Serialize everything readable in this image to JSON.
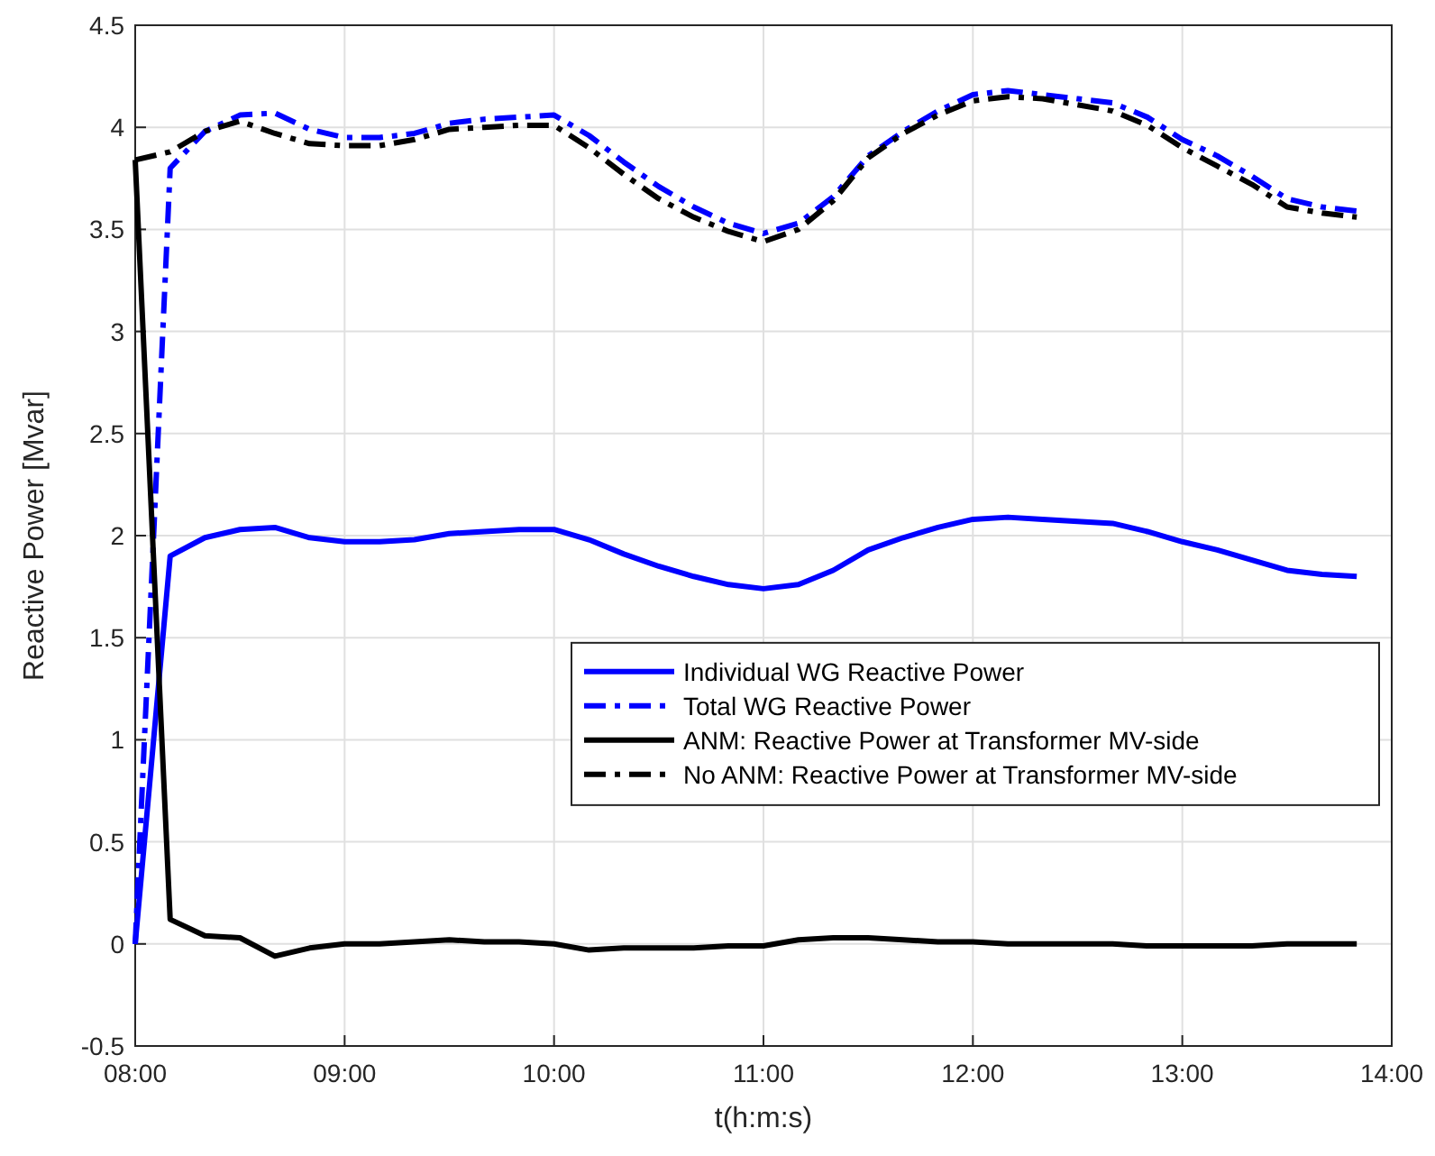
{
  "chart_data": {
    "type": "line",
    "xlabel": "t(h:m:s)",
    "ylabel": "Reactive Power [Mvar]",
    "x": [
      8,
      8.167,
      8.333,
      8.5,
      8.667,
      8.833,
      9,
      9.167,
      9.333,
      9.5,
      9.667,
      9.833,
      10,
      10.167,
      10.333,
      10.5,
      10.667,
      10.833,
      11,
      11.167,
      11.333,
      11.5,
      11.667,
      11.833,
      12,
      12.167,
      12.333,
      12.5,
      12.667,
      12.833,
      13,
      13.167,
      13.333,
      13.5,
      13.667,
      13.833
    ],
    "xlim": [
      8,
      14
    ],
    "xticks": [
      {
        "value": 8,
        "label": "08:00"
      },
      {
        "value": 9,
        "label": "09:00"
      },
      {
        "value": 10,
        "label": "10:00"
      },
      {
        "value": 11,
        "label": "11:00"
      },
      {
        "value": 12,
        "label": "12:00"
      },
      {
        "value": 13,
        "label": "13:00"
      },
      {
        "value": 14,
        "label": "14:00"
      }
    ],
    "ylim": [
      -0.5,
      4.5
    ],
    "yticks": [
      -0.5,
      0,
      0.5,
      1,
      1.5,
      2,
      2.5,
      3,
      3.5,
      4,
      4.5
    ],
    "grid": true,
    "legend": "right",
    "marker": "none",
    "series": [
      {
        "name": "Individual WG Reactive Power",
        "color": "#0000ff",
        "line_style": "solid",
        "values": [
          0,
          1.9,
          1.99,
          2.03,
          2.04,
          1.99,
          1.97,
          1.97,
          1.98,
          2.01,
          2.02,
          2.03,
          2.03,
          1.98,
          1.91,
          1.85,
          1.8,
          1.76,
          1.74,
          1.76,
          1.83,
          1.93,
          1.99,
          2.04,
          2.08,
          2.09,
          2.08,
          2.07,
          2.06,
          2.02,
          1.97,
          1.93,
          1.88,
          1.83,
          1.81,
          1.8
        ]
      },
      {
        "name": "Total WG Reactive Power",
        "color": "#0000ff",
        "line_style": "dashed",
        "values": [
          0,
          3.8,
          3.98,
          4.06,
          4.07,
          3.99,
          3.95,
          3.95,
          3.97,
          4.02,
          4.04,
          4.05,
          4.06,
          3.96,
          3.83,
          3.71,
          3.61,
          3.53,
          3.48,
          3.53,
          3.66,
          3.86,
          3.98,
          4.08,
          4.16,
          4.18,
          4.16,
          4.14,
          4.12,
          4.05,
          3.94,
          3.86,
          3.76,
          3.65,
          3.61,
          3.59
        ]
      },
      {
        "name": "ANM: Reactive Power at Transformer MV-side",
        "color": "#000000",
        "line_style": "solid",
        "values": [
          3.84,
          0.12,
          0.04,
          0.03,
          -0.06,
          -0.02,
          0,
          0,
          0.01,
          0.02,
          0.01,
          0.01,
          0,
          -0.03,
          -0.02,
          -0.02,
          -0.02,
          -0.01,
          -0.01,
          0.02,
          0.03,
          0.03,
          0.02,
          0.01,
          0.01,
          0,
          0,
          0,
          0,
          -0.01,
          -0.01,
          -0.01,
          -0.01,
          0,
          0,
          0
        ]
      },
      {
        "name": "No ANM: Reactive Power at Transformer MV-side",
        "color": "#000000",
        "line_style": "dashed",
        "values": [
          3.84,
          3.88,
          3.98,
          4.03,
          3.97,
          3.92,
          3.91,
          3.91,
          3.94,
          3.99,
          4,
          4.01,
          4.01,
          3.9,
          3.77,
          3.65,
          3.56,
          3.49,
          3.44,
          3.5,
          3.64,
          3.85,
          3.97,
          4.06,
          4.13,
          4.15,
          4.14,
          4.11,
          4.08,
          4.01,
          3.9,
          3.81,
          3.72,
          3.61,
          3.58,
          3.56
        ]
      }
    ]
  }
}
